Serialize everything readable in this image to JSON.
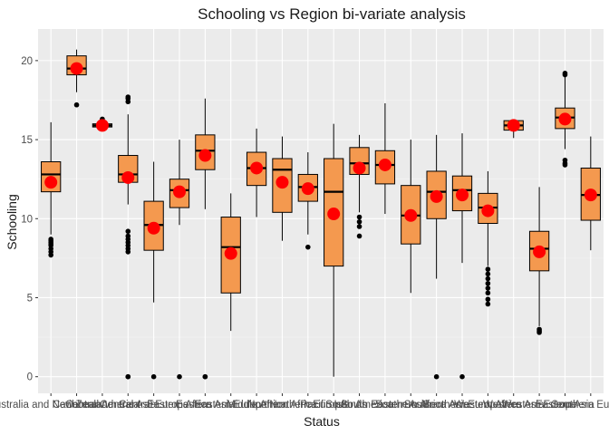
{
  "chart_data": {
    "type": "boxplot",
    "title": "Schooling vs Region bi-variate analysis",
    "xlabel": "Status",
    "ylabel": "Schooling",
    "ylim": [
      -1.05,
      22
    ],
    "yticks": [
      0,
      5,
      10,
      15,
      20
    ],
    "grid": true,
    "colors": {
      "panel": "#ebebeb",
      "grid_major": "#ffffff",
      "box_fill": "#f4994f",
      "box_line": "#000000",
      "mean_point": "#ff0000",
      "outlier": "#000000"
    },
    "categories": [
      "Australia and New Zealand",
      "Caribbean",
      "Central America",
      "Central Asia",
      "Central Europe",
      "Eastern Africa",
      "Eastern Asia",
      "Eastern Europe",
      "Middle Africa",
      "Northern Africa",
      "Northern Europe",
      "Pacific Islands",
      "South America",
      "South Eastern Asia",
      "Southern Africa",
      "Southern Asia",
      "Southern Europe",
      "Western Africa",
      "Western Asia",
      "Western Europe",
      "Eastern Asia",
      "Southern Europe"
    ],
    "boxes": [
      {
        "q1": 11.7,
        "median": 12.8,
        "q3": 13.6,
        "whisker_low": 9.0,
        "whisker_high": 16.1,
        "mean": 12.3,
        "outliers": [
          8.7,
          8.6,
          8.5,
          8.4,
          8.3,
          8.1,
          7.9,
          7.7
        ]
      },
      {
        "q1": 19.1,
        "median": 19.5,
        "q3": 20.3,
        "whisker_low": 18.0,
        "whisker_high": 20.7,
        "mean": 19.5,
        "outliers": [
          17.2
        ]
      },
      {
        "q1": 15.8,
        "median": 15.9,
        "q3": 16.0,
        "whisker_low": 15.7,
        "whisker_high": 16.1,
        "mean": 15.9,
        "outliers": [
          16.3
        ]
      },
      {
        "q1": 12.3,
        "median": 12.8,
        "q3": 14.0,
        "whisker_low": 10.9,
        "whisker_high": 16.6,
        "mean": 12.6,
        "outliers": [
          17.7,
          17.6,
          17.4,
          9.2,
          8.9,
          8.7,
          8.5,
          8.3,
          8.1,
          7.9,
          0,
          0
        ]
      },
      {
        "q1": 8.0,
        "median": 9.6,
        "q3": 11.1,
        "whisker_low": 4.7,
        "whisker_high": 13.6,
        "mean": 9.4,
        "outliers": [
          0
        ]
      },
      {
        "q1": 10.7,
        "median": 11.8,
        "q3": 12.5,
        "whisker_low": 9.6,
        "whisker_high": 15.0,
        "mean": 11.7,
        "outliers": [
          0
        ]
      },
      {
        "q1": 13.1,
        "median": 14.3,
        "q3": 15.3,
        "whisker_low": 10.6,
        "whisker_high": 17.6,
        "mean": 14.0,
        "outliers": [
          0,
          0
        ]
      },
      {
        "q1": 5.3,
        "median": 8.2,
        "q3": 10.1,
        "whisker_low": 2.9,
        "whisker_high": 11.6,
        "mean": 7.8,
        "outliers": []
      },
      {
        "q1": 12.1,
        "median": 13.2,
        "q3": 14.2,
        "whisker_low": 10.1,
        "whisker_high": 15.7,
        "mean": 13.2,
        "outliers": []
      },
      {
        "q1": 10.4,
        "median": 13.1,
        "q3": 13.8,
        "whisker_low": 8.6,
        "whisker_high": 15.2,
        "mean": 12.3,
        "outliers": []
      },
      {
        "q1": 11.1,
        "median": 12.0,
        "q3": 12.8,
        "whisker_low": 9.0,
        "whisker_high": 14.2,
        "mean": 11.9,
        "outliers": [
          8.2
        ]
      },
      {
        "q1": 7.0,
        "median": 11.7,
        "q3": 13.8,
        "whisker_low": 0,
        "whisker_high": 16.0,
        "mean": 10.3,
        "outliers": []
      },
      {
        "q1": 12.8,
        "median": 13.5,
        "q3": 14.5,
        "whisker_low": 10.4,
        "whisker_high": 15.3,
        "mean": 13.2,
        "outliers": [
          10.1,
          9.8,
          9.5,
          8.9
        ]
      },
      {
        "q1": 12.2,
        "median": 13.4,
        "q3": 14.3,
        "whisker_low": 10.3,
        "whisker_high": 17.3,
        "mean": 13.4,
        "outliers": []
      },
      {
        "q1": 8.4,
        "median": 10.2,
        "q3": 12.1,
        "whisker_low": 5.3,
        "whisker_high": 15.0,
        "mean": 10.2,
        "outliers": []
      },
      {
        "q1": 10.0,
        "median": 11.7,
        "q3": 13.0,
        "whisker_low": 6.2,
        "whisker_high": 15.3,
        "mean": 11.4,
        "outliers": [
          0
        ]
      },
      {
        "q1": 10.5,
        "median": 11.8,
        "q3": 12.7,
        "whisker_low": 7.2,
        "whisker_high": 15.4,
        "mean": 11.5,
        "outliers": [
          0
        ]
      },
      {
        "q1": 9.7,
        "median": 10.7,
        "q3": 11.6,
        "whisker_low": 7.0,
        "whisker_high": 13.0,
        "mean": 10.5,
        "outliers": [
          6.8,
          6.5,
          6.2,
          5.9,
          5.6,
          5.3,
          4.9,
          4.6
        ]
      },
      {
        "q1": 15.6,
        "median": 15.9,
        "q3": 16.2,
        "whisker_low": 15.1,
        "whisker_high": 16.2,
        "mean": 15.9,
        "outliers": []
      },
      {
        "q1": 6.7,
        "median": 8.1,
        "q3": 9.2,
        "whisker_low": 3.2,
        "whisker_high": 12.0,
        "mean": 7.9,
        "outliers": [
          3.0,
          2.9,
          2.8
        ]
      },
      {
        "q1": 15.7,
        "median": 16.4,
        "q3": 17.0,
        "whisker_low": 14.4,
        "whisker_high": 19.0,
        "mean": 16.3,
        "outliers": [
          19.2,
          19.1,
          13.7,
          13.5,
          13.4
        ]
      },
      {
        "q1": 9.9,
        "median": 11.5,
        "q3": 13.2,
        "whisker_low": 8.0,
        "whisker_high": 15.2,
        "mean": 11.5,
        "outliers": []
      }
    ]
  }
}
